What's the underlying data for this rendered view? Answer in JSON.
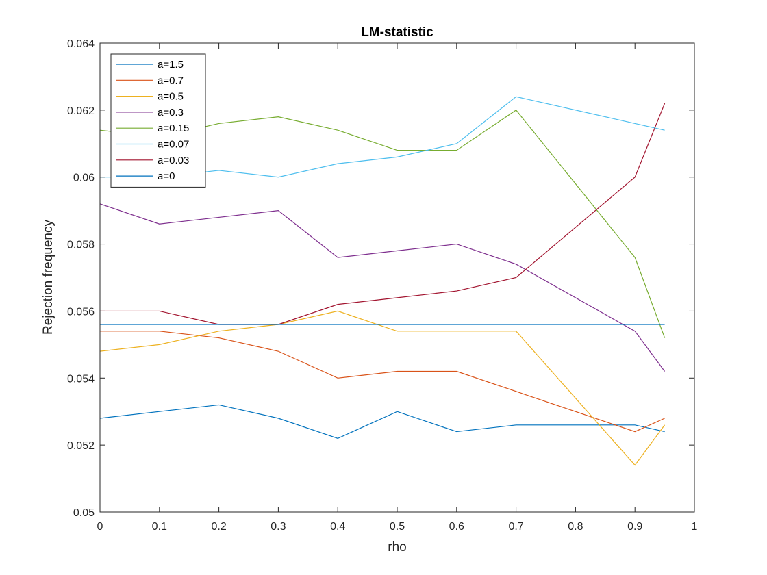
{
  "chart_data": {
    "type": "line",
    "title": "LM-statistic",
    "xlabel": "rho",
    "ylabel": "Rejection frequency",
    "xlim": [
      0,
      1
    ],
    "ylim": [
      0.05,
      0.064
    ],
    "xticks": [
      0,
      0.1,
      0.2,
      0.3,
      0.4,
      0.5,
      0.6,
      0.7,
      0.8,
      0.9,
      1
    ],
    "xtick_labels": [
      "0",
      "0.1",
      "0.2",
      "0.3",
      "0.4",
      "0.5",
      "0.6",
      "0.7",
      "0.8",
      "0.9",
      "1"
    ],
    "yticks": [
      0.05,
      0.052,
      0.054,
      0.056,
      0.058,
      0.06,
      0.062,
      0.064
    ],
    "ytick_labels": [
      "0.05",
      "0.052",
      "0.054",
      "0.056",
      "0.058",
      "0.06",
      "0.062",
      "0.064"
    ],
    "grid": false,
    "legend_position": "top-left",
    "x": [
      0,
      0.1,
      0.2,
      0.3,
      0.4,
      0.5,
      0.6,
      0.7,
      0.9,
      0.95
    ],
    "series": [
      {
        "name": "a=1.5",
        "color": "#0072BD",
        "values": [
          0.0528,
          0.053,
          0.0532,
          0.0528,
          0.0522,
          0.053,
          0.0524,
          0.0526,
          0.0526,
          0.0524
        ]
      },
      {
        "name": "a=0.7",
        "color": "#D95319",
        "values": [
          0.0554,
          0.0554,
          0.0552,
          0.0548,
          0.054,
          0.0542,
          0.0542,
          0.0536,
          0.0524,
          0.0528
        ]
      },
      {
        "name": "a=0.5",
        "color": "#EDB120",
        "values": [
          0.0548,
          0.055,
          0.0554,
          0.0556,
          0.056,
          0.0554,
          0.0554,
          0.0554,
          0.0514,
          0.0526
        ]
      },
      {
        "name": "a=0.3",
        "color": "#7E2F8E",
        "values": [
          0.0592,
          0.0586,
          0.0588,
          0.059,
          0.0576,
          0.0578,
          0.058,
          0.0574,
          0.0554,
          0.0542
        ]
      },
      {
        "name": "a=0.15",
        "color": "#77AC30",
        "values": [
          0.0614,
          0.0612,
          0.0616,
          0.0618,
          0.0614,
          0.0608,
          0.0608,
          0.062,
          0.0576,
          0.0552
        ]
      },
      {
        "name": "a=0.07",
        "color": "#4DBEEE",
        "values": [
          0.06,
          0.06,
          0.0602,
          0.06,
          0.0604,
          0.0606,
          0.061,
          0.0624,
          0.0616,
          0.0614
        ]
      },
      {
        "name": "a=0.03",
        "color": "#A2142F",
        "values": [
          0.056,
          0.056,
          0.0556,
          0.0556,
          0.0562,
          0.0564,
          0.0566,
          0.057,
          0.06,
          0.0622
        ]
      },
      {
        "name": "a=0",
        "color": "#0072BD",
        "values": [
          0.0556,
          0.0556,
          0.0556,
          0.0556,
          0.0556,
          0.0556,
          0.0556,
          0.0556,
          0.0556,
          0.0556
        ]
      }
    ]
  }
}
